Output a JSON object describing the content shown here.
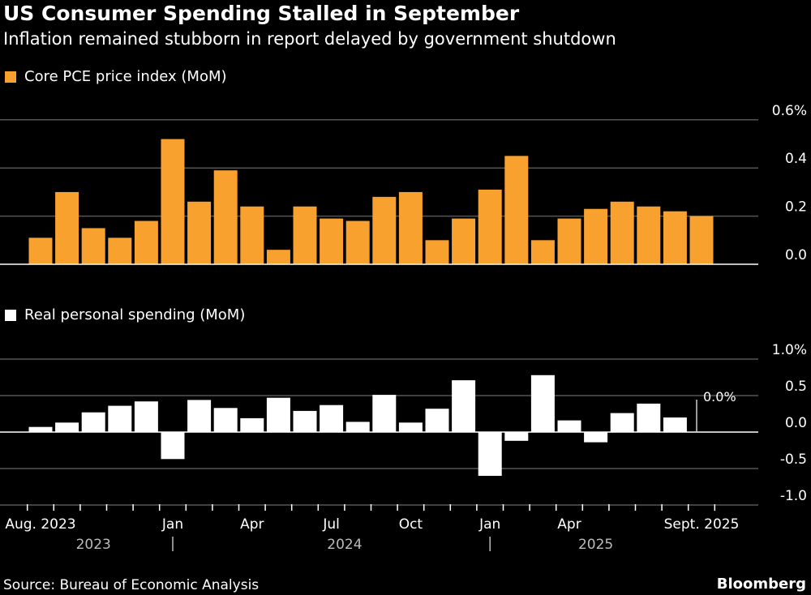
{
  "title": "US Consumer Spending Stalled in September",
  "subtitle": "Inflation remained stubborn in report delayed by government shutdown",
  "source": "Source: Bureau of Economic Analysis",
  "brand": "Bloomberg",
  "colors": {
    "pce": "#f9a12e",
    "spending": "#ffffff",
    "grid": "#555555",
    "background": "#000000"
  },
  "chart_data": [
    {
      "type": "bar",
      "series": [
        {
          "name": "Core PCE price index (MoM)",
          "values": [
            0.11,
            0.3,
            0.15,
            0.11,
            0.18,
            0.52,
            0.26,
            0.39,
            0.24,
            0.06,
            0.24,
            0.19,
            0.18,
            0.28,
            0.3,
            0.1,
            0.19,
            0.31,
            0.45,
            0.1,
            0.19,
            0.23,
            0.26,
            0.24,
            0.22,
            0.2
          ]
        }
      ],
      "ylim": [
        0,
        0.6
      ],
      "yticks": [
        "0.0",
        "0.2",
        "0.4",
        "0.6%"
      ],
      "ytick_values": [
        0,
        0.2,
        0.4,
        0.6
      ],
      "grid": true
    },
    {
      "type": "bar",
      "series": [
        {
          "name": "Real personal spending (MoM)",
          "values": [
            0.07,
            0.13,
            0.27,
            0.36,
            0.42,
            -0.37,
            0.44,
            0.33,
            0.19,
            0.47,
            0.29,
            0.37,
            0.14,
            0.51,
            0.13,
            0.32,
            0.71,
            -0.6,
            -0.12,
            0.78,
            0.16,
            -0.14,
            0.26,
            0.39,
            0.2,
            0.0
          ]
        }
      ],
      "ylim": [
        -1,
        1
      ],
      "yticks": [
        "-1.0",
        "-0.5",
        "0.0",
        "0.5",
        "1.0%"
      ],
      "ytick_values": [
        -1,
        -0.5,
        0,
        0.5,
        1
      ],
      "grid": true,
      "annotation": "0.0%"
    }
  ],
  "x_axis": {
    "months": [
      "Aug. 2023",
      "Jan",
      "Apr",
      "Jul",
      "Oct",
      "Jan",
      "Apr",
      "Sept. 2025"
    ],
    "month_index": [
      0,
      5,
      8,
      11,
      14,
      17,
      20,
      25
    ],
    "years": [
      "2023",
      "2024",
      "2025"
    ],
    "year_index": [
      2,
      11.5,
      21
    ],
    "year_separators": [
      5,
      17
    ],
    "count": 26
  }
}
